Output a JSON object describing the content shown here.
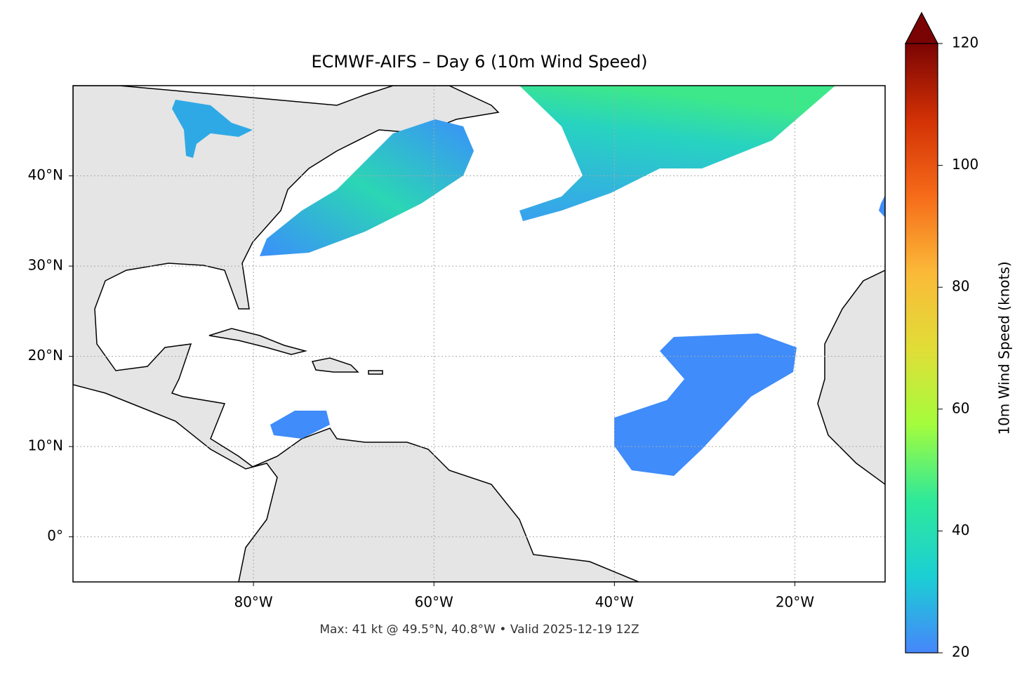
{
  "chart_data": {
    "type": "map",
    "title": "ECMWF-AIFS – Day 6 (10m Wind Speed)",
    "annotation": "Max: 41 kt @ 49.5°N, 40.8°W • Valid 2025-12-19 12Z",
    "xlim": [
      -100,
      -10
    ],
    "ylim": [
      -5,
      50
    ],
    "xticks": [
      {
        "value": -80,
        "label": "80°W"
      },
      {
        "value": -60,
        "label": "60°W"
      },
      {
        "value": -40,
        "label": "40°W"
      },
      {
        "value": -20,
        "label": "20°W"
      }
    ],
    "yticks": [
      {
        "value": 0,
        "label": "0°"
      },
      {
        "value": 10,
        "label": "10°N"
      },
      {
        "value": 20,
        "label": "20°N"
      },
      {
        "value": 30,
        "label": "30°N"
      },
      {
        "value": 40,
        "label": "40°N"
      }
    ],
    "grid": true,
    "colorbar": {
      "label": "10m Wind Speed (knots)",
      "lim": [
        20,
        120
      ],
      "ticks": [
        20,
        40,
        60,
        80,
        100,
        120
      ],
      "extend": "max",
      "colormap": [
        "#4686fb",
        "#1bcfd4",
        "#2ee99a",
        "#a4fc3c",
        "#e1dd37",
        "#fbb938",
        "#f66b19",
        "#d23105",
        "#7a0403"
      ]
    }
  }
}
